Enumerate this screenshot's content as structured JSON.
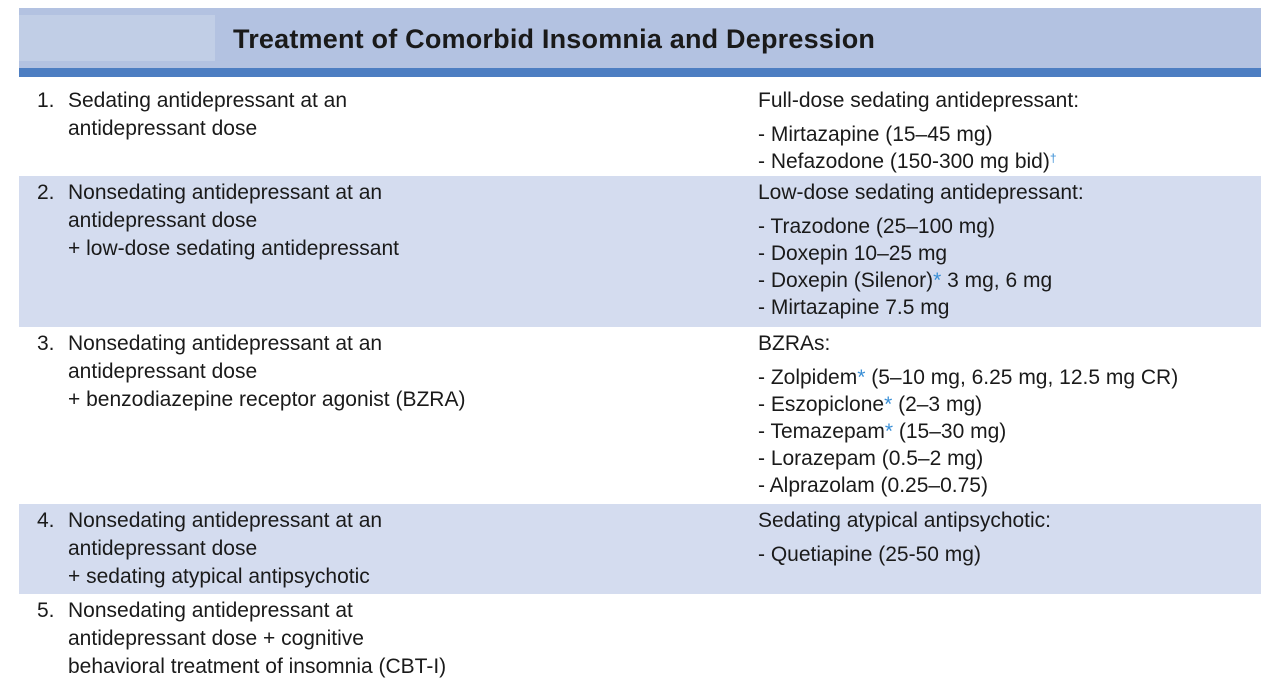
{
  "title": "Treatment of Comorbid Insomnia and Depression",
  "colors": {
    "header_bg": "#b3c2e1",
    "header_rule": "#4d7ec2",
    "row_shade": "#d4dcef",
    "marker": "#3a8fd6"
  },
  "rows": [
    {
      "num": "1.",
      "left": [
        "Sedating antidepressant at an",
        "antidepressant dose"
      ],
      "right_head": "Full-dose sedating antidepressant:",
      "items": [
        {
          "text": "- Mirtazapine (15–45 mg)"
        },
        {
          "text": "- Nefazodone (150-300 mg bid)",
          "mark": "†"
        }
      ]
    },
    {
      "num": "2.",
      "left": [
        "Nonsedating antidepressant at an",
        "antidepressant dose",
        "+ low-dose sedating antidepressant"
      ],
      "right_head": "Low-dose sedating antidepressant:",
      "items": [
        {
          "text": "- Trazodone (25–100 mg)"
        },
        {
          "text": "- Doxepin 10–25 mg"
        },
        {
          "pre": "- Doxepin (Silenor)",
          "star": "*",
          "post": " 3 mg, 6 mg"
        },
        {
          "text": "- Mirtazapine 7.5 mg"
        }
      ]
    },
    {
      "num": "3.",
      "left": [
        "Nonsedating antidepressant at an",
        "antidepressant dose",
        "+ benzodiazepine receptor agonist (BZRA)"
      ],
      "right_head": "BZRAs:",
      "items": [
        {
          "pre": "- Zolpidem",
          "star": "*",
          "post": " (5–10 mg, 6.25 mg, 12.5 mg CR)"
        },
        {
          "pre": "- Eszopiclone",
          "star": "*",
          "post": " (2–3 mg)"
        },
        {
          "pre": "- Temazepam",
          "star": "*",
          "post": " (15–30 mg)"
        },
        {
          "text": "- Lorazepam (0.5–2 mg)"
        },
        {
          "text": "- Alprazolam (0.25–0.75)"
        }
      ]
    },
    {
      "num": "4.",
      "left": [
        "Nonsedating antidepressant at an",
        "antidepressant dose",
        "+ sedating atypical antipsychotic"
      ],
      "right_head": "Sedating atypical antipsychotic:",
      "items": [
        {
          "text": "- Quetiapine (25-50 mg)"
        }
      ]
    },
    {
      "num": "5.",
      "left": [
        "Nonsedating antidepressant at",
        "antidepressant dose + cognitive",
        "behavioral treatment of insomnia (CBT-I)"
      ],
      "right_head": "",
      "items": []
    }
  ]
}
